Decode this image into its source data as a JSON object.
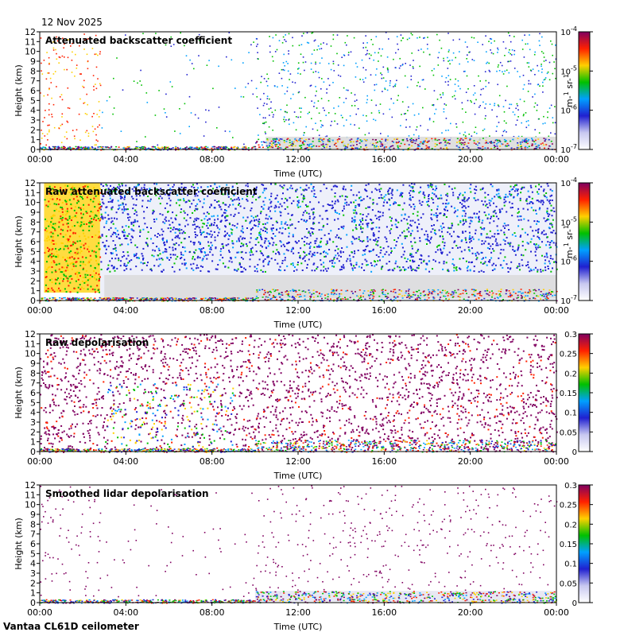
{
  "header": {
    "date": "12 Nov 2025"
  },
  "footer": {
    "instrument": "Vantaa CL61D ceilometer"
  },
  "axes": {
    "xlabel": "Time (UTC)",
    "ylabel": "Height (km)",
    "xticks": [
      "00:00",
      "04:00",
      "08:00",
      "12:00",
      "16:00",
      "20:00",
      "00:00"
    ],
    "yticks": [
      0,
      1,
      2,
      3,
      4,
      5,
      6,
      7,
      8,
      9,
      10,
      11,
      12
    ],
    "xlim_hours": [
      0,
      24
    ],
    "ylim_km": [
      0,
      12
    ]
  },
  "colormap": [
    "#ffffff",
    "#c8c8f0",
    "#2020d0",
    "#00a0ff",
    "#00c000",
    "#ffd000",
    "#ff2000",
    "#800060"
  ],
  "no_data_color": "#d9d9d9",
  "chart_data": [
    {
      "type": "heatmap",
      "title": "Attenuated backscatter coefficient",
      "colorbar": {
        "scale": "log",
        "ticks": [
          "10-7",
          "10-6",
          "10-5",
          "10-4"
        ],
        "unit": "m-1 sr-1"
      },
      "xlabel": "Time (UTC)",
      "ylabel": "Height (km)",
      "xlim": [
        0,
        24
      ],
      "ylim": [
        0,
        12
      ]
    },
    {
      "type": "heatmap",
      "title": "Raw attenuated backscatter coefficient",
      "colorbar": {
        "scale": "log",
        "ticks": [
          "10-7",
          "10-6",
          "10-5",
          "10-4"
        ],
        "unit": "m-1 sr-1"
      },
      "xlabel": "Time (UTC)",
      "ylabel": "Height (km)",
      "xlim": [
        0,
        24
      ],
      "ylim": [
        0,
        12
      ]
    },
    {
      "type": "heatmap",
      "title": "Raw depolarisation",
      "colorbar": {
        "scale": "linear",
        "ticks": [
          "0",
          "0.05",
          "0.1",
          "0.15",
          "0.2",
          "0.25",
          "0.3"
        ],
        "range": [
          0,
          0.3
        ]
      },
      "xlabel": "Time (UTC)",
      "ylabel": "Height (km)",
      "xlim": [
        0,
        24
      ],
      "ylim": [
        0,
        12
      ]
    },
    {
      "type": "heatmap",
      "title": "Smoothed lidar depolarisation",
      "colorbar": {
        "scale": "linear",
        "ticks": [
          "0",
          "0.05",
          "0.1",
          "0.15",
          "0.2",
          "0.25",
          "0.3"
        ],
        "range": [
          0,
          0.3
        ]
      },
      "xlabel": "Time (UTC)",
      "ylabel": "Height (km)",
      "xlim": [
        0,
        24
      ],
      "ylim": [
        0,
        12
      ]
    }
  ]
}
